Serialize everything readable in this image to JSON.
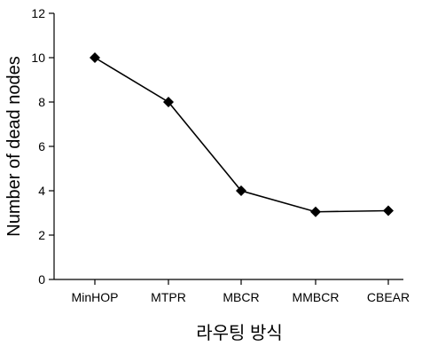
{
  "chart_data": {
    "type": "line",
    "categories": [
      "MinHOP",
      "MTPR",
      "MBCR",
      "MMBCR",
      "CBEAR"
    ],
    "values": [
      10,
      8,
      4,
      3.05,
      3.1
    ],
    "xlabel": "라우팅 방식",
    "ylabel": "Number of dead nodes",
    "ylim": [
      0,
      12
    ],
    "yticks": [
      0,
      2,
      4,
      6,
      8,
      10,
      12
    ],
    "grid": false,
    "legend": "none",
    "marker": "diamond",
    "line_color": "#000000"
  }
}
